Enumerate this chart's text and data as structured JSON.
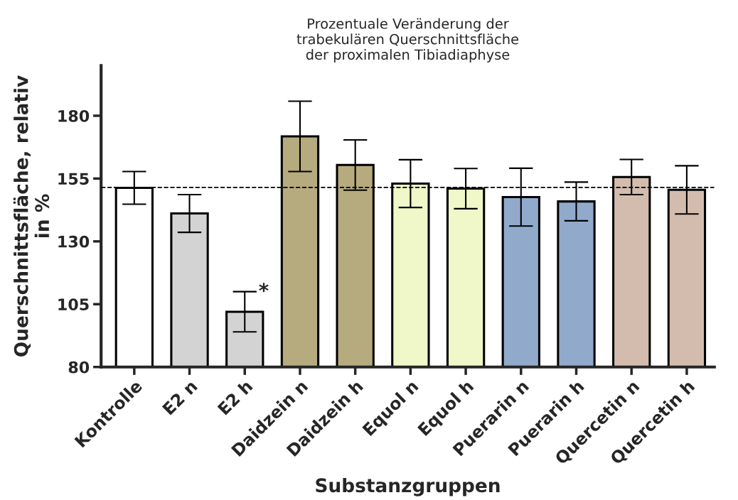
{
  "chart_data": {
    "type": "bar",
    "title": "Prozentuale Veränderung der\ntrabekulären Querschnittsfläche\nder proximalen Tibiadiaphyse",
    "xlabel": "Substanzgruppen",
    "ylabel": "Querschnittsfläche, relativ\nin %",
    "categories": [
      "Kontrolle",
      "E2 n",
      "E2 h",
      "Daidzein n",
      "Daidzein h",
      "Equol n",
      "Equol h",
      "Puerarin n",
      "Puerarin h",
      "Quercetin n",
      "Quercetin h"
    ],
    "values": [
      151.3,
      141.1,
      102,
      171.8,
      160.4,
      153,
      151,
      147.6,
      145.9,
      155.6,
      150.5
    ],
    "errors": [
      6.5,
      7.5,
      8,
      14,
      10,
      9.5,
      8,
      11.5,
      7.7,
      7,
      9.6
    ],
    "colors": [
      "#ffffff",
      "#d3d3d3",
      "#d3d3d3",
      "#bfb176",
      "#bfb176",
      "#f5ffc0",
      "#f5ffc0",
      "#87a9d6",
      "#87a9d6",
      "#d9bba8",
      "#d9bba8"
    ],
    "ylim": [
      80,
      200
    ],
    "yticks": [
      80,
      105,
      130,
      155,
      180
    ],
    "ref_lines": [
      {
        "axis": "y",
        "value": 151.5,
        "line_style": "dashed",
        "color": "#000000"
      }
    ],
    "annotations": [
      {
        "text": "*",
        "x": "E2 h",
        "y": 110
      }
    ],
    "grid": false,
    "legend": false
  }
}
